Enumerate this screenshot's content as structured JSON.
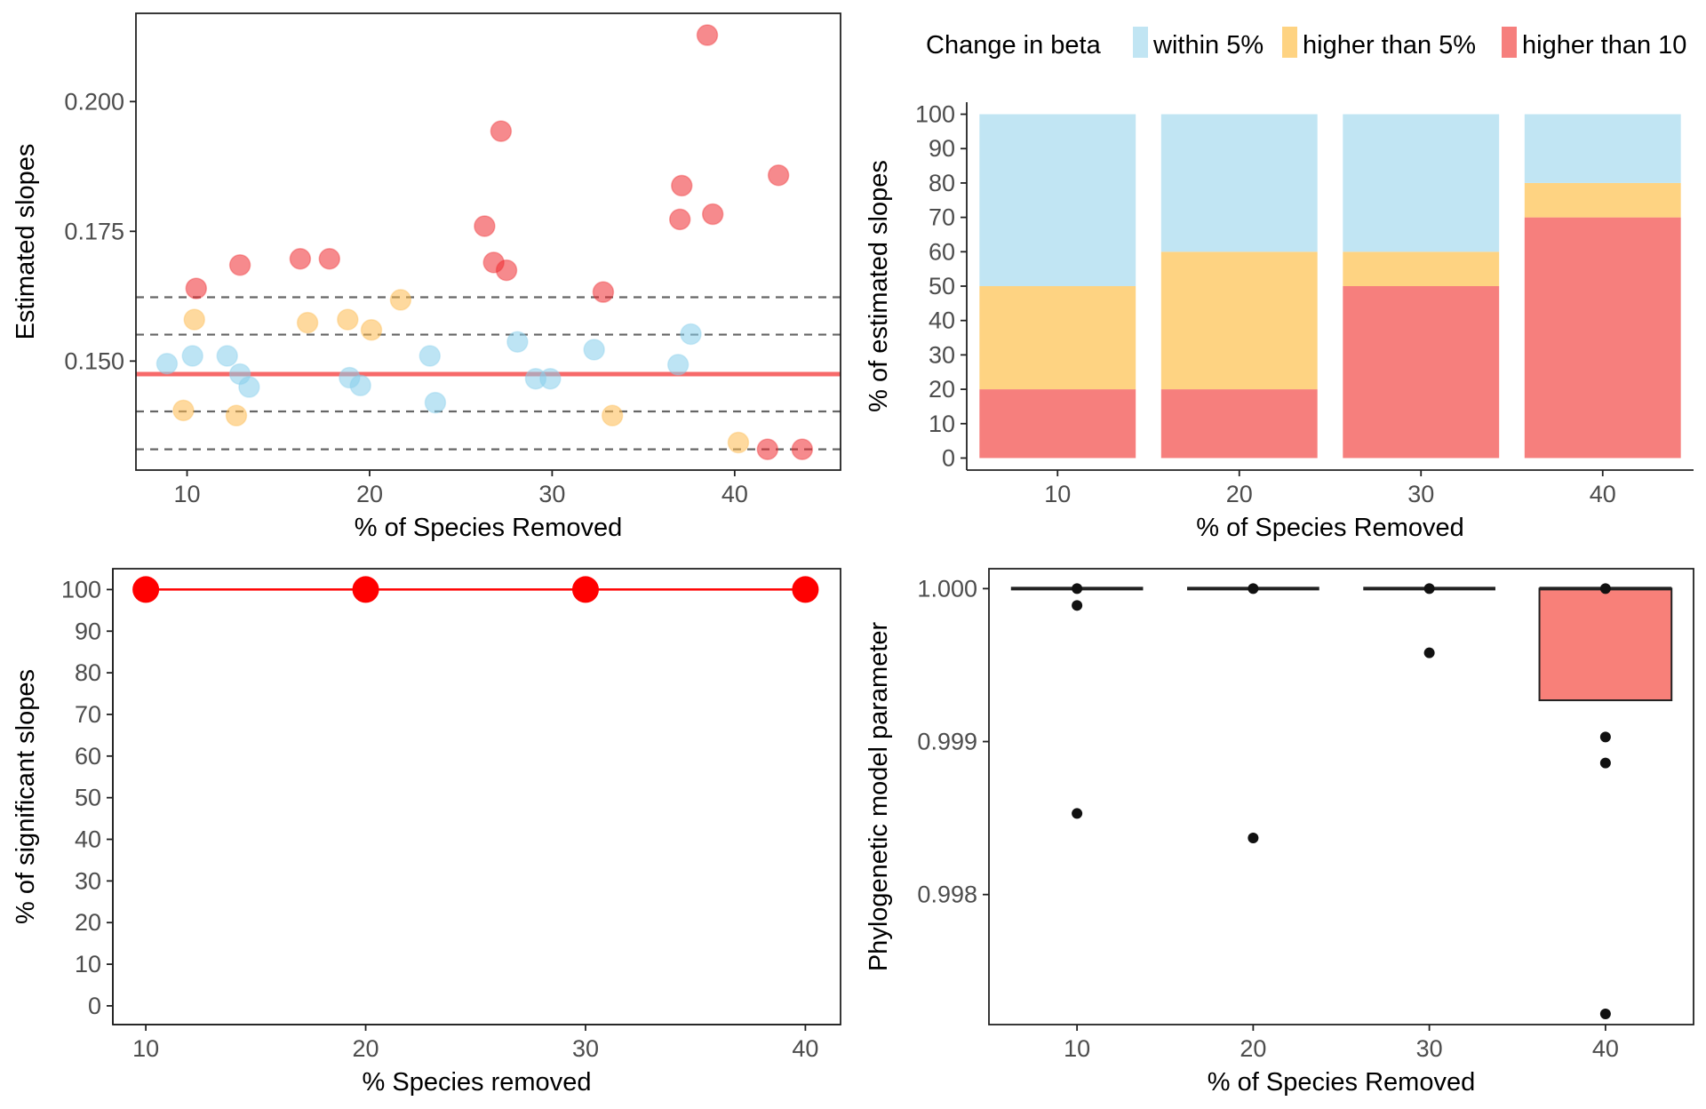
{
  "colors": {
    "within5": "#87ceeb",
    "higher5": "#fdb94e",
    "higher10": "#ee2a2f",
    "bar_within5": "#c1e5f3",
    "bar_higher5": "#fed382",
    "bar_higher10": "#f67f7d",
    "reference_line": "#f76a6a",
    "dashed_line": "#666666",
    "significance_line": "#ff0000",
    "box_fill": "#f88079",
    "axis_text": "#4d4d4d",
    "dark": "#222222"
  },
  "chart_data": [
    {
      "id": "slopes",
      "type": "scatter",
      "xlabel": "% of Species Removed",
      "ylabel": "Estimated slopes",
      "xlim": [
        7.2,
        45.8
      ],
      "ylim": [
        0.129,
        0.217
      ],
      "xticks": [
        10,
        20,
        30,
        40
      ],
      "yticks": [
        0.15,
        0.175,
        0.2
      ],
      "ytick_labels": [
        "0.150",
        "0.175",
        "0.200"
      ],
      "reference_slope": 0.1475,
      "dashed_lines": [
        0.1623,
        0.1551,
        0.1403,
        0.133
      ],
      "legend_title": "Change in beta",
      "legend_items": [
        {
          "key": "within5",
          "label": "within 5%"
        },
        {
          "key": "higher5",
          "label": "higher than 5%"
        },
        {
          "key": "higher10",
          "label": "higher than 10"
        }
      ],
      "points": [
        {
          "x": 8.9,
          "y": 0.1495,
          "cls": "within5"
        },
        {
          "x": 10.3,
          "y": 0.151,
          "cls": "within5"
        },
        {
          "x": 12.2,
          "y": 0.151,
          "cls": "within5"
        },
        {
          "x": 12.9,
          "y": 0.1475,
          "cls": "within5"
        },
        {
          "x": 13.4,
          "y": 0.145,
          "cls": "within5"
        },
        {
          "x": 18.9,
          "y": 0.1468,
          "cls": "within5"
        },
        {
          "x": 19.5,
          "y": 0.1453,
          "cls": "within5"
        },
        {
          "x": 23.3,
          "y": 0.151,
          "cls": "within5"
        },
        {
          "x": 23.6,
          "y": 0.142,
          "cls": "within5"
        },
        {
          "x": 28.1,
          "y": 0.1537,
          "cls": "within5"
        },
        {
          "x": 29.1,
          "y": 0.1466,
          "cls": "within5"
        },
        {
          "x": 29.9,
          "y": 0.1466,
          "cls": "within5"
        },
        {
          "x": 32.3,
          "y": 0.1522,
          "cls": "within5"
        },
        {
          "x": 36.9,
          "y": 0.1493,
          "cls": "within5"
        },
        {
          "x": 37.6,
          "y": 0.1552,
          "cls": "within5"
        },
        {
          "x": 9.8,
          "y": 0.1405,
          "cls": "higher5"
        },
        {
          "x": 10.4,
          "y": 0.158,
          "cls": "higher5"
        },
        {
          "x": 12.7,
          "y": 0.1395,
          "cls": "higher5"
        },
        {
          "x": 16.6,
          "y": 0.1574,
          "cls": "higher5"
        },
        {
          "x": 18.8,
          "y": 0.158,
          "cls": "higher5"
        },
        {
          "x": 20.1,
          "y": 0.156,
          "cls": "higher5"
        },
        {
          "x": 21.7,
          "y": 0.1618,
          "cls": "higher5"
        },
        {
          "x": 33.3,
          "y": 0.1395,
          "cls": "higher5"
        },
        {
          "x": 40.2,
          "y": 0.1343,
          "cls": "higher5"
        },
        {
          "x": 10.5,
          "y": 0.164,
          "cls": "higher10"
        },
        {
          "x": 12.9,
          "y": 0.1685,
          "cls": "higher10"
        },
        {
          "x": 16.2,
          "y": 0.1697,
          "cls": "higher10"
        },
        {
          "x": 17.8,
          "y": 0.1697,
          "cls": "higher10"
        },
        {
          "x": 26.3,
          "y": 0.176,
          "cls": "higher10"
        },
        {
          "x": 26.8,
          "y": 0.169,
          "cls": "higher10"
        },
        {
          "x": 27.2,
          "y": 0.1943,
          "cls": "higher10"
        },
        {
          "x": 27.5,
          "y": 0.1675,
          "cls": "higher10"
        },
        {
          "x": 32.8,
          "y": 0.1633,
          "cls": "higher10"
        },
        {
          "x": 37.0,
          "y": 0.1773,
          "cls": "higher10"
        },
        {
          "x": 37.1,
          "y": 0.1838,
          "cls": "higher10"
        },
        {
          "x": 38.5,
          "y": 0.2128,
          "cls": "higher10"
        },
        {
          "x": 38.8,
          "y": 0.1783,
          "cls": "higher10"
        },
        {
          "x": 41.8,
          "y": 0.133,
          "cls": "higher10"
        },
        {
          "x": 42.4,
          "y": 0.1858,
          "cls": "higher10"
        },
        {
          "x": 43.7,
          "y": 0.133,
          "cls": "higher10"
        }
      ]
    },
    {
      "id": "stacked",
      "type": "bar",
      "xlabel": "% of Species Removed",
      "ylabel": "% of estimated slopes",
      "categories": [
        "10",
        "20",
        "30",
        "40"
      ],
      "ylim": [
        -3.5,
        103.5
      ],
      "yticks": [
        0,
        10,
        20,
        30,
        40,
        50,
        60,
        70,
        80,
        90,
        100
      ],
      "series": [
        {
          "name": "higher than 10",
          "key": "higher10",
          "values": [
            20,
            20,
            50,
            70
          ]
        },
        {
          "name": "higher than 5%",
          "key": "higher5",
          "values": [
            30,
            40,
            10,
            10
          ]
        },
        {
          "name": "within 5%",
          "key": "within5",
          "values": [
            50,
            40,
            40,
            20
          ]
        }
      ]
    },
    {
      "id": "significance",
      "type": "line",
      "xlabel": "% Species removed",
      "ylabel": "% of significant slopes",
      "x": [
        10,
        20,
        30,
        40
      ],
      "y": [
        100,
        100,
        100,
        100
      ],
      "xlim": [
        8.5,
        41.6
      ],
      "ylim": [
        -4.5,
        105
      ],
      "xticks": [
        10,
        20,
        30,
        40
      ],
      "yticks": [
        0,
        10,
        20,
        30,
        40,
        50,
        60,
        70,
        80,
        90,
        100
      ]
    },
    {
      "id": "phylo",
      "type": "box",
      "xlabel": "% of Species Removed",
      "ylabel": "Phylogenetic model parameter",
      "categories": [
        "10",
        "20",
        "30",
        "40"
      ],
      "ylim": [
        0.99715,
        1.00013
      ],
      "yticks": [
        0.998,
        0.999,
        1.0
      ],
      "ytick_labels": [
        "0.998",
        "0.999",
        "1.000"
      ],
      "boxes": [
        {
          "q1": 1.0,
          "median": 1.0,
          "q3": 1.0,
          "whisker_low": 1.0,
          "whisker_high": 1.0,
          "outliers": [
            1.0,
            0.99989,
            0.99853
          ]
        },
        {
          "q1": 1.0,
          "median": 1.0,
          "q3": 1.0,
          "whisker_low": 1.0,
          "whisker_high": 1.0,
          "outliers": [
            1.0,
            0.99837
          ]
        },
        {
          "q1": 1.0,
          "median": 1.0,
          "q3": 1.0,
          "whisker_low": 1.0,
          "whisker_high": 1.0,
          "outliers": [
            1.0,
            0.99958
          ]
        },
        {
          "q1": 0.99927,
          "median": 1.0,
          "q3": 1.0,
          "whisker_low": 0.99927,
          "whisker_high": 1.0,
          "outliers": [
            1.0,
            0.99903,
            0.99886,
            0.99722
          ]
        }
      ]
    }
  ]
}
